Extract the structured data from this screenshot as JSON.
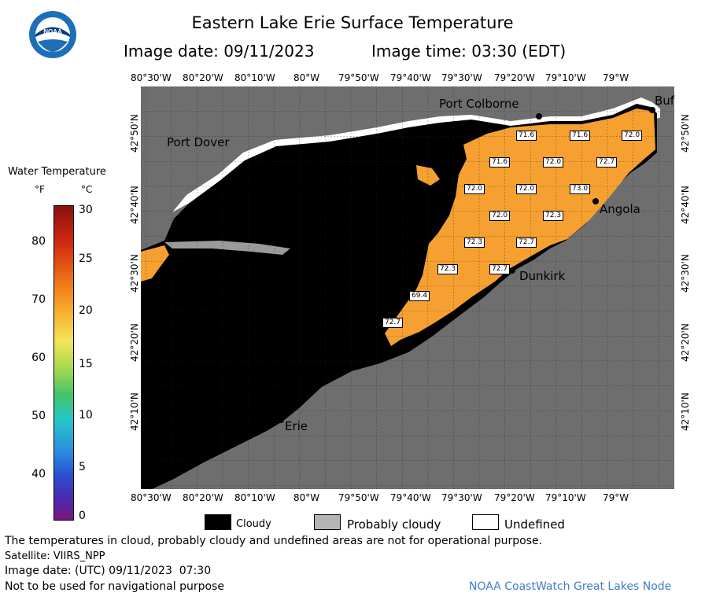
{
  "header": {
    "title": "Eastern Lake Erie Surface Temperature",
    "image_date": "Image date: 09/11/2023",
    "image_time": "Image time: 03:30 (EDT)",
    "logo_text": "NOAA"
  },
  "map": {
    "lon_labels_top": [
      "80°30'W",
      "80°20'W",
      "80°10'W",
      "80°W",
      "79°50'W",
      "79°40'W",
      "79°30'W",
      "79°20'W",
      "79°10'W",
      "79°W"
    ],
    "lon_labels_bottom": [
      "80°30'W",
      "80°20'W",
      "80°10'W",
      "80°W",
      "79°50'W",
      "79°40'W",
      "79°30'W",
      "79°20'W",
      "79°10'W",
      "79°W"
    ],
    "lat_labels_left": [
      "42°50'N",
      "42°40'N",
      "42°30'N",
      "42°20'N",
      "42°10'N"
    ],
    "lat_labels_right": [
      "42°50'N",
      "42°40'N",
      "42°30'N",
      "42°20'N",
      "42°10'N"
    ],
    "cities": {
      "port_colborne": "Port Colborne",
      "port_dover": "Port Dover",
      "buffalo": "Buf",
      "angola": "Angola",
      "dunkirk": "Dunkirk",
      "erie": "Erie"
    },
    "temperature_labels": [
      "71.6",
      "71.6",
      "72.0",
      "71.6",
      "72.0",
      "72.7",
      "72.0",
      "72.0",
      "73.0",
      "72.0",
      "72.3",
      "72.3",
      "72.7",
      "72.3",
      "72.7",
      "69.4",
      "72.7"
    ],
    "colors": {
      "land": "#6e6e6e",
      "cloud": "#000000",
      "water_warm": "#f5a030",
      "undefined": "#ffffff"
    }
  },
  "legend": {
    "title": "Water Temperature",
    "unit_f": "°F",
    "unit_c": "°C",
    "ticks_f": [
      "80",
      "70",
      "60",
      "50",
      "40"
    ],
    "ticks_c": [
      "30",
      "25",
      "20",
      "15",
      "10",
      "5",
      "0"
    ]
  },
  "key": {
    "cloudy": "Cloudy",
    "probably_cloudy": "Probably cloudy",
    "undefined": "Undefined"
  },
  "footer": {
    "disclaimer": "The temperatures in cloud, probably cloudy and undefined areas are not for operational purpose.",
    "satellite": "Satellite: VIIRS_NPP",
    "utc_date": "Image date: (UTC) 09/11/2023  07:30",
    "navigation": "Not to be used for navigational purpose",
    "credit": "NOAA CoastWatch Great Lakes Node"
  }
}
